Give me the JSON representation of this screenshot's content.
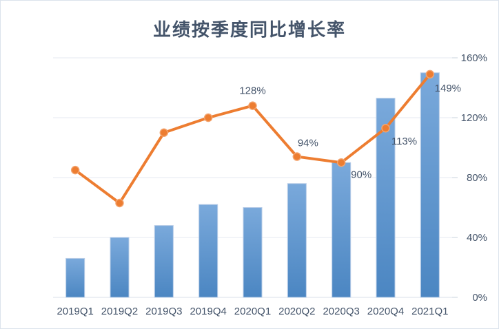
{
  "chart_data": {
    "type": "combo",
    "title": "业绩按季度同比增长率",
    "categories": [
      "2019Q1",
      "2019Q2",
      "2019Q3",
      "2019Q4",
      "2020Q1",
      "2020Q2",
      "2020Q3",
      "2020Q4",
      "2021Q1"
    ],
    "series": [
      {
        "type": "bar",
        "color": "#5B9BD5",
        "values": [
          26,
          40,
          48,
          62,
          60,
          76,
          90,
          133,
          150
        ]
      },
      {
        "type": "line",
        "color": "#ED7D31",
        "values": [
          85,
          63,
          110,
          120,
          128,
          94,
          90,
          113,
          149
        ],
        "data_labels": [
          {
            "index": 4,
            "text": "128%",
            "dx": 0,
            "dy": -17
          },
          {
            "index": 5,
            "text": "94%",
            "dx": 16,
            "dy": -15
          },
          {
            "index": 6,
            "text": "90%",
            "dx": 29,
            "dy": 22
          },
          {
            "index": 7,
            "text": "113%",
            "dx": 27,
            "dy": 24
          },
          {
            "index": 8,
            "text": "149%",
            "dx": 26,
            "dy": 25
          }
        ]
      }
    ],
    "y_axis": {
      "side": "right",
      "min": 0,
      "max": 160,
      "tick_values": [
        0,
        40,
        80,
        120,
        160
      ],
      "tick_labels": [
        "0%",
        "40%",
        "80%",
        "120%",
        "160%"
      ]
    },
    "grid": true,
    "legend": false,
    "colors": {
      "title": "#44546A",
      "axis_text": "#44546A",
      "gridline": "#E4EAF1",
      "axis_line": "#D8DFE8",
      "tick": "#C9D3DE",
      "bar_top": "#7AA9DB",
      "bar_bottom": "#4B86C2",
      "bar_edge": "#B7CCE7",
      "line": "#ED7D31",
      "marker_stroke": "#F3A46F"
    }
  }
}
